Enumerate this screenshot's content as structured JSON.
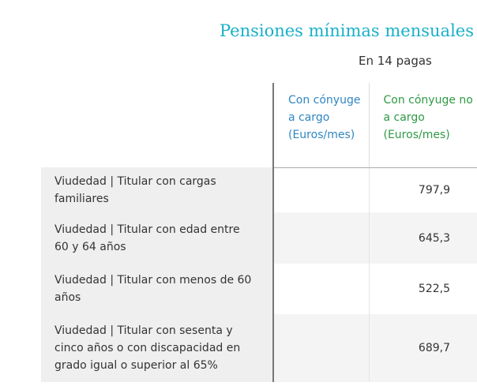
{
  "header": {
    "title": "Pensiones mínimas mensuales",
    "subtitle": "En 14 pagas"
  },
  "table": {
    "columns": [
      "Con cónyuge a cargo (Euros/mes)",
      "Con cónyuge no a cargo (Euros/mes)"
    ],
    "rows": [
      {
        "label": "Viudedad | Titular con cargas familiares",
        "value": "797,9"
      },
      {
        "label": "Viudedad | Titular con edad entre 60 y 64 años",
        "value": "645,3"
      },
      {
        "label": "Viudedad | Titular con menos de 60 años",
        "value": "522,5"
      },
      {
        "label": "Viudedad | Titular con sesenta y cinco años o con discapacidad en grado igual o superior al 65%",
        "value": "689,7"
      }
    ]
  }
}
